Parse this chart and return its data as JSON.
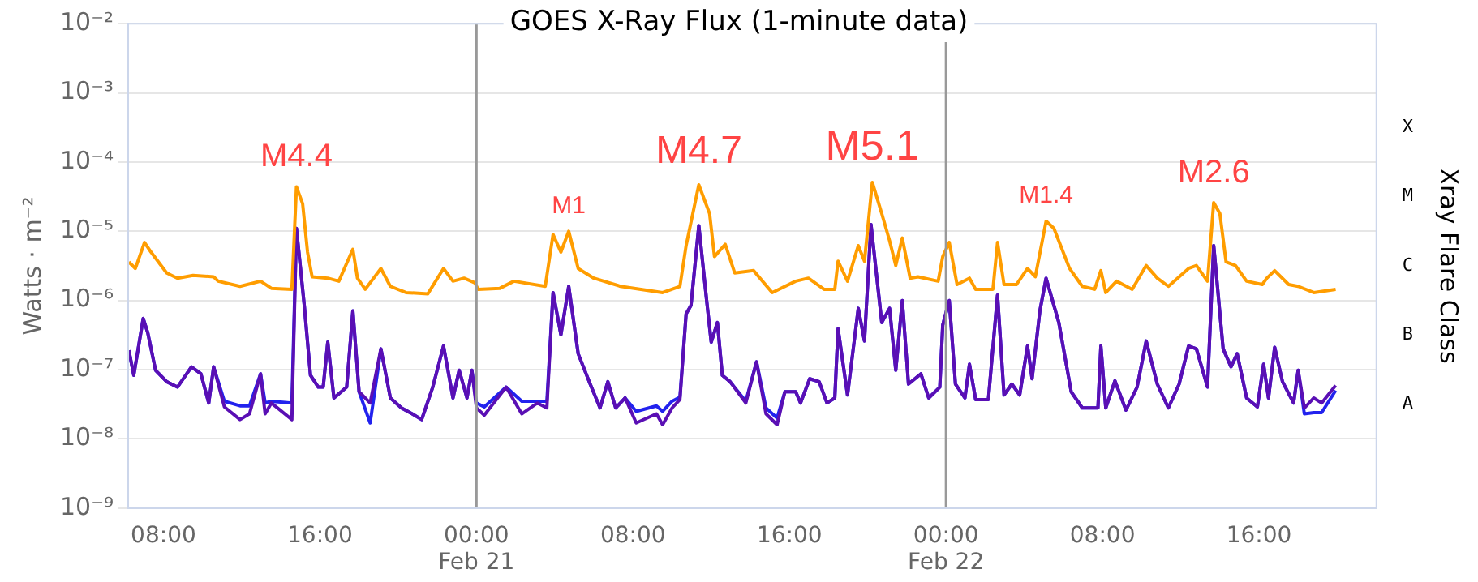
{
  "chart_data": {
    "type": "line",
    "title": "GOES X-Ray Flux (1-minute data)",
    "ylabel": "Watts · m⁻²",
    "y2label": "Xray Flare Class",
    "xlim": [
      "--02-20T06:12",
      "--02-22T22:00"
    ],
    "xticks": [
      {
        "value": "--02-20T08:00",
        "label": "08:00"
      },
      {
        "value": "--02-20T16:00",
        "label": "16:00"
      },
      {
        "value": "--02-21T00:00",
        "label": "00:00\nFeb 21"
      },
      {
        "value": "--02-21T08:00",
        "label": "08:00"
      },
      {
        "value": "--02-21T16:00",
        "label": "16:00"
      },
      {
        "value": "--02-22T00:00",
        "label": "00:00\nFeb 22"
      },
      {
        "value": "--02-22T08:00",
        "label": "08:00"
      },
      {
        "value": "--02-22T16:00",
        "label": "16:00"
      }
    ],
    "ylim": [
      1e-09,
      0.01
    ],
    "yticks": [
      {
        "value": 1e-09,
        "label": "10⁻⁹"
      },
      {
        "value": 1e-08,
        "label": "10⁻⁸"
      },
      {
        "value": 1e-07,
        "label": "10⁻⁷"
      },
      {
        "value": 1e-06,
        "label": "10⁻⁶"
      },
      {
        "value": 1e-05,
        "label": "10⁻⁵"
      },
      {
        "value": 0.0001,
        "label": "10⁻⁴"
      },
      {
        "value": 0.001,
        "label": "10⁻³"
      },
      {
        "value": 0.01,
        "label": "10⁻²"
      }
    ],
    "y2_categories": [
      null,
      "X",
      "M",
      "C",
      "B",
      "A",
      null
    ],
    "log": true,
    "grid": "y",
    "legend": false,
    "marker": "none",
    "line_style": "solid",
    "ref_lines": [
      {
        "axis": "x",
        "value": "--02-21T00:00",
        "color": "#999999"
      },
      {
        "axis": "x",
        "value": "--02-22T00:00",
        "color": "#999999"
      }
    ],
    "annotations": [
      {
        "text": "M4.4",
        "x": "--02-20T14:48",
        "y": 4.4e-05
      },
      {
        "text": "M1",
        "x": "--02-21T04:43",
        "y": 1e-05
      },
      {
        "text": "M4.7",
        "x": "--02-21T11:22",
        "y": 4.7e-05
      },
      {
        "text": "M5.1",
        "x": "--02-21T20:14",
        "y": 5.1e-05
      },
      {
        "text": "M1.4",
        "x": "--02-22T05:07",
        "y": 1.4e-05
      },
      {
        "text": "M2.6",
        "x": "--02-22T13:41",
        "y": 2.6e-05
      }
    ],
    "x": [
      "--02-20T06:14",
      "--02-20T06:29",
      "--02-20T06:58",
      "--02-20T07:12",
      "--02-20T07:36",
      "--02-20T08:10",
      "--02-20T08:43",
      "--02-20T09:26",
      "--02-20T09:55",
      "--02-20T10:19",
      "--02-20T10:34",
      "--02-20T11:07",
      "--02-20T11:55",
      "--02-20T12:24",
      "--02-20T12:58",
      "--02-20T13:12",
      "--02-20T13:31",
      "--02-20T14:34",
      "--02-20T14:48",
      "--02-20T15:12",
      "--02-20T15:31",
      "--02-20T15:55",
      "--02-20T16:10",
      "--02-20T16:24",
      "--02-20T16:43",
      "--02-20T17:22",
      "--02-20T17:41",
      "--02-20T18:00",
      "--02-20T18:34",
      "--02-20T19:07",
      "--02-20T19:36",
      "--02-20T20:10",
      "--02-20T20:43",
      "--02-20T21:12",
      "--02-20T21:46",
      "--02-20T22:19",
      "--02-20T22:48",
      "--02-20T23:07",
      "--02-20T23:31",
      "--02-20T23:46",
      "--02-21T00:00",
      "--02-21T00:24",
      "--02-21T01:31",
      "--02-21T02:19",
      "--02-21T03:07",
      "--02-21T03:36",
      "--02-21T03:55",
      "--02-21T04:19",
      "--02-21T04:43",
      "--02-21T05:12",
      "--02-21T05:46",
      "--02-21T06:19",
      "--02-21T06:43",
      "--02-21T07:07",
      "--02-21T07:36",
      "--02-21T08:10",
      "--02-21T09:12",
      "--02-21T09:31",
      "--02-21T10:00",
      "--02-21T10:24",
      "--02-21T10:43",
      "--02-21T10:58",
      "--02-21T11:22",
      "--02-21T11:46",
      "--02-21T12:00",
      "--02-21T12:19",
      "--02-21T12:34",
      "--02-21T12:58",
      "--02-21T13:46",
      "--02-21T14:19",
      "--02-21T14:48",
      "--02-21T15:22",
      "--02-21T15:46",
      "--02-21T16:19",
      "--02-21T16:34",
      "--02-21T17:02",
      "--02-21T17:31",
      "--02-21T17:55",
      "--02-21T18:19",
      "--02-21T18:29",
      "--02-21T18:58",
      "--02-21T19:31",
      "--02-21T19:50",
      "--02-21T20:10",
      "--02-21T20:43",
      "--02-21T21:07",
      "--02-21T21:26",
      "--02-21T21:46",
      "--02-21T22:05",
      "--02-21T22:43",
      "--02-21T23:07",
      "--02-21T23:41",
      "--02-21T23:50",
      "--02-22T00:10",
      "--02-22T00:29",
      "--02-22T00:58",
      "--02-22T01:12",
      "--02-22T01:31",
      "--02-22T02:10",
      "--02-22T02:38",
      "--02-22T02:58",
      "--02-22T03:22",
      "--02-22T03:46",
      "--02-22T04:10",
      "--02-22T04:24",
      "--02-22T04:48",
      "--02-22T05:07",
      "--02-22T05:46",
      "--02-22T06:24",
      "--02-22T06:58",
      "--02-22T07:46",
      "--02-22T07:55",
      "--02-22T08:10",
      "--02-22T08:38",
      "--02-22T09:12",
      "--02-22T09:46",
      "--02-22T10:14",
      "--02-22T10:48",
      "--02-22T11:22",
      "--02-22T11:55",
      "--02-22T12:24",
      "--02-22T12:48",
      "--02-22T13:22",
      "--02-22T13:41",
      "--02-22T14:10",
      "--02-22T14:34",
      "--02-22T14:53",
      "--02-22T15:22",
      "--02-22T15:55",
      "--02-22T16:14",
      "--02-22T16:29",
      "--02-22T16:48",
      "--02-22T17:12",
      "--02-22T17:46",
      "--02-22T18:00",
      "--02-22T18:19",
      "--02-22T18:48",
      "--02-22T19:12",
      "--02-22T19:55"
    ],
    "series": [
      {
        "color": "#ff9d00",
        "x": [
          "--02-20T06:14",
          "--02-20T06:34",
          "--02-20T07:02",
          "--02-20T07:22",
          "--02-20T08:10",
          "--02-20T08:43",
          "--02-20T09:31",
          "--02-20T10:34",
          "--02-20T10:48",
          "--02-20T11:55",
          "--02-20T12:58",
          "--02-20T13:31",
          "--02-20T14:34",
          "--02-20T14:48",
          "--02-20T15:07",
          "--02-20T15:22",
          "--02-20T15:36",
          "--02-20T16:24",
          "--02-20T16:58",
          "--02-20T17:41",
          "--02-20T17:55",
          "--02-20T18:19",
          "--02-20T19:07",
          "--02-20T19:36",
          "--02-20T20:24",
          "--02-20T21:31",
          "--02-20T22:19",
          "--02-20T22:48",
          "--02-20T23:22",
          "--02-20T23:55",
          "--02-21T00:05",
          "--02-21T01:12",
          "--02-21T01:55",
          "--02-21T03:31",
          "--02-21T03:55",
          "--02-21T04:19",
          "--02-21T04:43",
          "--02-21T05:12",
          "--02-21T06:00",
          "--02-21T07:22",
          "--02-21T09:31",
          "--02-21T10:24",
          "--02-21T10:43",
          "--02-21T11:22",
          "--02-21T11:55",
          "--02-21T12:10",
          "--02-21T12:43",
          "--02-21T13:12",
          "--02-21T14:10",
          "--02-21T15:07",
          "--02-21T16:19",
          "--02-21T16:58",
          "--02-21T17:46",
          "--02-21T18:19",
          "--02-21T18:29",
          "--02-21T18:58",
          "--02-21T19:31",
          "--02-21T19:50",
          "--02-21T20:14",
          "--02-21T20:43",
          "--02-21T21:07",
          "--02-21T21:26",
          "--02-21T21:46",
          "--02-21T22:10",
          "--02-21T22:34",
          "--02-21T23:36",
          "--02-21T23:50",
          "--02-22T00:10",
          "--02-22T00:34",
          "--02-22T01:12",
          "--02-22T01:31",
          "--02-22T02:24",
          "--02-22T02:38",
          "--02-22T02:58",
          "--02-22T03:36",
          "--02-22T04:10",
          "--02-22T04:34",
          "--02-22T05:07",
          "--02-22T05:31",
          "--02-22T06:19",
          "--02-22T06:58",
          "--02-22T07:36",
          "--02-22T07:55",
          "--02-22T08:10",
          "--02-22T08:43",
          "--02-22T09:31",
          "--02-22T10:14",
          "--02-22T10:48",
          "--02-22T11:22",
          "--02-22T12:24",
          "--02-22T12:48",
          "--02-22T13:22",
          "--02-22T13:41",
          "--02-22T14:00",
          "--02-22T14:19",
          "--02-22T14:48",
          "--02-22T15:22",
          "--02-22T16:10",
          "--02-22T16:24",
          "--02-22T16:48",
          "--02-22T17:31",
          "--02-22T18:00",
          "--02-22T18:48",
          "--02-22T19:55"
        ],
        "values": [
          3.6e-06,
          2.9e-06,
          6.9e-06,
          5e-06,
          2.5e-06,
          2.1e-06,
          2.3e-06,
          2.2e-06,
          1.9e-06,
          1.6e-06,
          1.9e-06,
          1.5e-06,
          1.45e-06,
          4.4e-05,
          2.5e-05,
          5e-06,
          2.2e-06,
          2.1e-06,
          1.9e-06,
          5.5e-06,
          2.1e-06,
          1.45e-06,
          2.9e-06,
          1.6e-06,
          1.3e-06,
          1.25e-06,
          2.9e-06,
          1.9e-06,
          2.1e-06,
          1.8e-06,
          1.45e-06,
          1.5e-06,
          1.9e-06,
          1.6e-06,
          9e-06,
          5e-06,
          1e-05,
          2.9e-06,
          2.1e-06,
          1.6e-06,
          1.3e-06,
          1.6e-06,
          6.2e-06,
          4.7e-05,
          1.8e-05,
          4.3e-06,
          6.5e-06,
          2.5e-06,
          2.7e-06,
          1.3e-06,
          1.9e-06,
          2.1e-06,
          1.45e-06,
          1.45e-06,
          3.7e-06,
          1.9e-06,
          6.2e-06,
          3.7e-06,
          5.1e-05,
          1.8e-05,
          7.3e-06,
          3.2e-06,
          8e-06,
          2.1e-06,
          2.2e-06,
          1.9e-06,
          4.3e-06,
          6.9e-06,
          1.7e-06,
          2.1e-06,
          1.45e-06,
          1.45e-06,
          6.9e-06,
          1.7e-06,
          1.7e-06,
          2.9e-06,
          2.2e-06,
          1.4e-05,
          1.1e-05,
          2.9e-06,
          1.6e-06,
          1.45e-06,
          2.7e-06,
          1.3e-06,
          1.9e-06,
          1.45e-06,
          3.2e-06,
          2.1e-06,
          1.6e-06,
          2.9e-06,
          3.2e-06,
          1.9e-06,
          2.6e-05,
          1.8e-05,
          3.6e-06,
          3.2e-06,
          1.9e-06,
          1.7e-06,
          2.1e-06,
          2.7e-06,
          1.7e-06,
          1.6e-06,
          1.3e-06,
          1.45e-06
        ]
      },
      {
        "color": "#5a0fb4",
        "values": [
          1.9e-07,
          8.3e-08,
          5.5e-07,
          3.4e-07,
          9.8e-08,
          6.7e-08,
          5.6e-08,
          1.1e-07,
          8.7e-08,
          3.3e-08,
          1.1e-07,
          2.9e-08,
          1.9e-08,
          2.3e-08,
          8.7e-08,
          2.3e-08,
          3.3e-08,
          1.9e-08,
          1.1e-05,
          8.5e-07,
          8.3e-08,
          5.6e-08,
          5.6e-08,
          2.5e-07,
          3.9e-08,
          5.6e-08,
          7.1e-07,
          4.8e-08,
          3.3e-08,
          2e-07,
          3.9e-08,
          2.8e-08,
          2.3e-08,
          1.9e-08,
          5.6e-08,
          2.2e-07,
          3.9e-08,
          9.8e-08,
          3.9e-08,
          9.8e-08,
          2.8e-08,
          2.2e-08,
          5.6e-08,
          2.3e-08,
          3.3e-08,
          2.8e-08,
          1.3e-06,
          3.2e-07,
          1.6e-06,
          1.7e-07,
          6.7e-08,
          2.8e-08,
          6.7e-08,
          2.8e-08,
          3.9e-08,
          1.7e-08,
          2.3e-08,
          1.6e-08,
          2.8e-08,
          3.7e-08,
          6.4e-07,
          8.5e-07,
          1.2e-05,
          1e-06,
          2.5e-07,
          4.8e-07,
          8.3e-08,
          6.7e-08,
          3.3e-08,
          1.3e-07,
          2.3e-08,
          1.6e-08,
          4.8e-08,
          4.8e-08,
          3.3e-08,
          7.4e-08,
          6.7e-08,
          3.3e-08,
          3.9e-08,
          3.9e-07,
          4.3e-08,
          7.7e-07,
          2.6e-07,
          1.25e-05,
          4.8e-07,
          7.7e-07,
          9.8e-08,
          1e-06,
          6.2e-08,
          8.7e-08,
          3.9e-08,
          5.6e-08,
          4.4e-07,
          1e-06,
          6.2e-08,
          3.9e-08,
          1.2e-07,
          3.7e-08,
          3.7e-08,
          1.2e-06,
          4.3e-08,
          6.2e-08,
          4.3e-08,
          2.2e-07,
          7.4e-08,
          7.1e-07,
          2.1e-06,
          4.8e-07,
          4.8e-08,
          2.8e-08,
          2.8e-08,
          2.2e-07,
          2.8e-08,
          6.9e-08,
          2.6e-08,
          5.6e-08,
          2.6e-07,
          6.2e-08,
          2.8e-08,
          6.2e-08,
          2.2e-07,
          2e-07,
          5.6e-08,
          6.2e-06,
          2e-07,
          1.1e-07,
          1.7e-07,
          3.9e-08,
          2.9e-08,
          1.2e-07,
          3.9e-08,
          2.1e-07,
          6.7e-08,
          3.3e-08,
          9.8e-08,
          2.8e-08,
          3.9e-08,
          3.3e-08,
          5.9e-08
        ]
      },
      {
        "color": "#2222ee",
        "values": [
          1.9e-07,
          8.3e-08,
          5.5e-07,
          3.4e-07,
          9.8e-08,
          6.7e-08,
          5.6e-08,
          1.1e-07,
          8.7e-08,
          3.3e-08,
          1.1e-07,
          3.5e-08,
          3e-08,
          3e-08,
          8.7e-08,
          3.3e-08,
          3.5e-08,
          3.3e-08,
          1.1e-05,
          8.5e-07,
          8.3e-08,
          5.6e-08,
          5.6e-08,
          2.5e-07,
          3.9e-08,
          5.6e-08,
          7.1e-07,
          4.8e-08,
          1.7e-08,
          2e-07,
          3.9e-08,
          2.8e-08,
          2.3e-08,
          1.9e-08,
          5.6e-08,
          2.2e-07,
          3.9e-08,
          9.8e-08,
          3.9e-08,
          9.8e-08,
          3.3e-08,
          2.9e-08,
          5.6e-08,
          3.5e-08,
          3.5e-08,
          3.5e-08,
          1.3e-06,
          3.2e-07,
          1.6e-06,
          1.7e-07,
          6.7e-08,
          2.8e-08,
          6.7e-08,
          2.8e-08,
          3.9e-08,
          2.5e-08,
          3e-08,
          2.5e-08,
          3.5e-08,
          4e-08,
          6.4e-07,
          8.5e-07,
          1.2e-05,
          1e-06,
          2.5e-07,
          4.8e-07,
          8.3e-08,
          6.7e-08,
          3.5e-08,
          1.3e-07,
          2.8e-08,
          2e-08,
          4.8e-08,
          4.8e-08,
          3.3e-08,
          7.4e-08,
          6.7e-08,
          3.3e-08,
          3.9e-08,
          3.9e-07,
          4.3e-08,
          7.7e-07,
          2.6e-07,
          1.25e-05,
          4.8e-07,
          7.7e-07,
          9.8e-08,
          1e-06,
          6.2e-08,
          8.7e-08,
          3.9e-08,
          5.6e-08,
          4.4e-07,
          1e-06,
          6.2e-08,
          3.9e-08,
          1.2e-07,
          3.7e-08,
          3.7e-08,
          1.2e-06,
          4.3e-08,
          6.2e-08,
          4.3e-08,
          2.2e-07,
          7.4e-08,
          7.1e-07,
          2.1e-06,
          4.8e-07,
          4.8e-08,
          2.8e-08,
          2.8e-08,
          2.2e-07,
          2.8e-08,
          6.9e-08,
          2.6e-08,
          5.6e-08,
          2.6e-07,
          6.2e-08,
          2.8e-08,
          6.2e-08,
          2.2e-07,
          2e-07,
          5.6e-08,
          6.2e-06,
          2e-07,
          1.1e-07,
          1.7e-07,
          3.9e-08,
          2.9e-08,
          1.2e-07,
          3.9e-08,
          2.1e-07,
          6.7e-08,
          3.3e-08,
          9.8e-08,
          2.3e-08,
          2.4e-08,
          2.4e-08,
          5e-08
        ]
      }
    ]
  }
}
